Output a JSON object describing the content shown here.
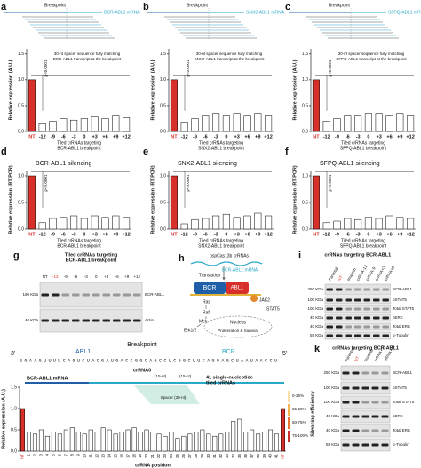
{
  "chart_data": [
    {
      "type": "bar",
      "panel": "a",
      "breakpoint_label": "Breakpoint",
      "mrna_label": "BCR-ABL1 mRNA",
      "note": [
        "30-nt spacer sequence fully matching",
        "BCR-ABL1 transcript at the breakpoint"
      ],
      "annotation": "p<0.0001",
      "ylabel": "Relative expression (A.U.)",
      "xlabel": [
        "Tiled crRNAs targeting",
        "BCR-ABL1 breakpoint"
      ],
      "categories": [
        "NT",
        "-12",
        "-9",
        "-6",
        "-3",
        "0",
        "+3",
        "+6",
        "+9",
        "+12"
      ],
      "values": [
        1.0,
        0.15,
        0.2,
        0.25,
        0.22,
        0.25,
        0.28,
        0.25,
        0.3,
        0.27
      ],
      "colors": [
        "#d7302a",
        "#ffffff",
        "#ffffff",
        "#ffffff",
        "#ffffff",
        "#ffffff",
        "#ffffff",
        "#ffffff",
        "#ffffff",
        "#ffffff"
      ],
      "ylim": [
        0,
        1.6
      ],
      "yticks": [
        {
          "value": 0,
          "label": "0.0"
        },
        0.5,
        {
          "value": 1,
          "label": "1.0"
        },
        1.5
      ]
    },
    {
      "type": "bar",
      "panel": "b",
      "breakpoint_label": "Breakpoint",
      "mrna_label": "SNX2-ABL1 mRNA",
      "note": [
        "30-nt spacer sequence fully matching",
        "SNX2-ABL1 transcript at the breakpoint"
      ],
      "annotation": "p<0.0001",
      "ylabel": "Relative expression (A.U.)",
      "xlabel": [
        "Tiled crRNAs targeting",
        "SNX2-ABL1 breakpoint"
      ],
      "categories": [
        "NT",
        "-12",
        "-9",
        "-6",
        "-3",
        "0",
        "+3",
        "+6",
        "+9",
        "+12"
      ],
      "values": [
        1.0,
        0.18,
        0.25,
        0.3,
        0.35,
        0.3,
        0.35,
        0.3,
        0.35,
        0.3
      ],
      "colors": [
        "#d7302a",
        "#ffffff",
        "#ffffff",
        "#ffffff",
        "#ffffff",
        "#ffffff",
        "#ffffff",
        "#ffffff",
        "#ffffff",
        "#ffffff"
      ],
      "ylim": [
        0,
        1.6
      ],
      "yticks": [
        {
          "value": 0,
          "label": "0.0"
        },
        0.5,
        {
          "value": 1,
          "label": "1.0"
        },
        1.5
      ]
    },
    {
      "type": "bar",
      "panel": "c",
      "breakpoint_label": "Breakpoint",
      "mrna_label": "SFPQ-ABL1 mRNA",
      "note": [
        "30-nt spacer sequence fully matching",
        "SFPQ-ABL1 transcript at the breakpoint"
      ],
      "annotation": "p<0.0001",
      "ylabel": "Relative expression (A.U.)",
      "xlabel": [
        "Tiled crRNAs targeting",
        "SFPQ-ABL1 breakpoint"
      ],
      "categories": [
        "NT",
        "-12",
        "-9",
        "-6",
        "-3",
        "0",
        "+3",
        "+6",
        "+9",
        "+12"
      ],
      "values": [
        1.0,
        0.2,
        0.25,
        0.3,
        0.3,
        0.35,
        0.35,
        0.3,
        0.35,
        0.3
      ],
      "colors": [
        "#d7302a",
        "#ffffff",
        "#ffffff",
        "#ffffff",
        "#ffffff",
        "#ffffff",
        "#ffffff",
        "#ffffff",
        "#ffffff",
        "#ffffff"
      ],
      "ylim": [
        0,
        1.6
      ],
      "yticks": [
        {
          "value": 0,
          "label": "0.0"
        },
        0.5,
        {
          "value": 1,
          "label": "1.0"
        },
        1.5
      ]
    },
    {
      "type": "bar",
      "panel": "d",
      "title": "BCR-ABL1 silencing",
      "annotation": "p<0.0001",
      "ylabel": "Relative expression (RT-PCR)",
      "xlabel": [
        "Tiled crRNAs targeting",
        "BCR-ABL1 breakpoint"
      ],
      "categories": [
        "NT",
        "-12",
        "-9",
        "-6",
        "-3",
        "0",
        "+3",
        "+6",
        "+9",
        "+12"
      ],
      "values": [
        1.0,
        0.12,
        0.2,
        0.22,
        0.25,
        0.2,
        0.25,
        0.22,
        0.25,
        0.22
      ],
      "colors": [
        "#d7302a",
        "#ffffff",
        "#ffffff",
        "#ffffff",
        "#ffffff",
        "#ffffff",
        "#ffffff",
        "#ffffff",
        "#ffffff",
        "#ffffff"
      ],
      "ylim": [
        0,
        1.1
      ],
      "yticks": [
        {
          "value": 0,
          "label": "0.0"
        },
        0.5,
        {
          "value": 1,
          "label": "1.0"
        }
      ]
    },
    {
      "type": "bar",
      "panel": "e",
      "title": "SNX2-ABL1 silencing",
      "annotation": "p<0.0001",
      "ylabel": "Relative expression (RT-PCR)",
      "xlabel": [
        "Tiled crRNAs targeting",
        "SNX2-ABL1 breakpoint"
      ],
      "categories": [
        "NT",
        "-12",
        "-9",
        "-6",
        "-3",
        "0",
        "+3",
        "+6",
        "+9",
        "+12"
      ],
      "values": [
        1.0,
        0.1,
        0.18,
        0.2,
        0.25,
        0.28,
        0.22,
        0.25,
        0.3,
        0.25
      ],
      "colors": [
        "#d7302a",
        "#ffffff",
        "#ffffff",
        "#ffffff",
        "#ffffff",
        "#ffffff",
        "#ffffff",
        "#ffffff",
        "#ffffff",
        "#ffffff"
      ],
      "ylim": [
        0,
        1.1
      ],
      "yticks": [
        {
          "value": 0,
          "label": "0.0"
        },
        0.5,
        {
          "value": 1,
          "label": "1.0"
        }
      ]
    },
    {
      "type": "bar",
      "panel": "f",
      "title": "SFPQ-ABL1 silencing",
      "annotation": "p<0.0001",
      "ylabel": "Relative expression (RT-PCR)",
      "xlabel": [
        "Tiled crRNAs targeting",
        "SFPQ-ABL1 breakpoint"
      ],
      "categories": [
        "NT",
        "-12",
        "-9",
        "-6",
        "-3",
        "0",
        "+3",
        "+6",
        "+9",
        "+12"
      ],
      "values": [
        1.0,
        0.12,
        0.15,
        0.2,
        0.18,
        0.22,
        0.2,
        0.25,
        0.22,
        0.2
      ],
      "colors": [
        "#d7302a",
        "#ffffff",
        "#ffffff",
        "#ffffff",
        "#ffffff",
        "#ffffff",
        "#ffffff",
        "#ffffff",
        "#ffffff",
        "#ffffff"
      ],
      "ylim": [
        0,
        1.1
      ],
      "yticks": [
        {
          "value": 0,
          "label": "0.0"
        },
        0.5,
        {
          "value": 1,
          "label": "1.0"
        }
      ]
    },
    {
      "type": "bar",
      "panel": "j",
      "ylabel": "Relative expression (A.U.)",
      "xlabel": [
        "crRNA position"
      ],
      "diagram": {
        "end3": "3'",
        "end5": "5'",
        "gene_left": "ABL1",
        "gene_right": "BCR",
        "breakpoint": "Breakpoint",
        "sequence": "GGAAGUUUUCAGUCUACGAUGACCGGCAGCCUCGGCUUCAGGAGCUAAUAACCU",
        "crrna": "crRNA0",
        "segment": "(15-nt)",
        "mrna": "BCR-ABL1 mRNA",
        "spacer": "Spacer (30-nt)",
        "tiled": [
          "41 single-nucleotide",
          "tiled crRNAs"
        ]
      },
      "right_title": "Silencing efficiency",
      "right_labels": [
        "0-25%",
        "25-50%",
        "50-75%",
        "75-100%"
      ],
      "categories": [
        "NT",
        "1",
        "2",
        "3",
        "4",
        "5",
        "6",
        "7",
        "8",
        "9",
        "10",
        "11",
        "12",
        "13",
        "14",
        "15",
        "16",
        "17",
        "18",
        "19",
        "20",
        "21",
        "22",
        "23",
        "24",
        "25",
        "26",
        "27",
        "28",
        "29",
        "30",
        "31",
        "32",
        "33",
        "34",
        "35",
        "36",
        "37",
        "38",
        "39",
        "40",
        "41",
        "NT"
      ],
      "values": [
        1.0,
        0.45,
        0.4,
        0.5,
        0.35,
        0.45,
        0.4,
        0.5,
        0.55,
        0.45,
        0.4,
        0.5,
        0.45,
        0.55,
        0.5,
        0.4,
        0.45,
        0.5,
        0.55,
        0.45,
        0.5,
        0.45,
        0.4,
        0.35,
        0.45,
        0.3,
        0.35,
        0.4,
        0.45,
        0.5,
        0.4,
        0.35,
        0.4,
        0.45,
        0.7,
        0.75,
        0.45,
        0.5,
        0.4,
        0.45,
        0.5,
        0.4,
        1.0
      ],
      "colors": [
        "#d7302a",
        "#ffffff",
        "#ffffff",
        "#ffffff",
        "#ffffff",
        "#ffffff",
        "#ffffff",
        "#ffffff",
        "#ffffff",
        "#ffffff",
        "#ffffff",
        "#ffffff",
        "#ffffff",
        "#ffffff",
        "#ffffff",
        "#ffffff",
        "#ffffff",
        "#ffffff",
        "#ffffff",
        "#ffffff",
        "#ffffff",
        "#ffffff",
        "#ffffff",
        "#ffffff",
        "#ffffff",
        "#ffffff",
        "#ffffff",
        "#ffffff",
        "#ffffff",
        "#ffffff",
        "#ffffff",
        "#ffffff",
        "#ffffff",
        "#ffffff",
        "#ffffff",
        "#ffffff",
        "#ffffff",
        "#ffffff",
        "#ffffff",
        "#ffffff",
        "#ffffff",
        "#ffffff",
        "#d7302a"
      ],
      "ylim": [
        0,
        1.5
      ],
      "yticks": [
        {
          "value": 0,
          "label": "0.0"
        },
        0.5,
        {
          "value": 1,
          "label": "1.0"
        },
        1.5
      ]
    }
  ],
  "panels": {
    "g": {
      "letter": "g",
      "title": [
        "Tiled crRNAs targeting",
        "BCR-ABL1 breakpoint"
      ],
      "lanes": [
        "NT",
        "-12",
        "-9",
        "-6",
        "-3",
        "0",
        "+3",
        "+6",
        "+9",
        "+12"
      ],
      "rows": [
        "BCR-ABL1",
        "Actin"
      ],
      "markers": [
        "190 KDa",
        "40 KDa"
      ]
    },
    "h": {
      "letter": "h",
      "crrnas": "pspCas13b crRNAs",
      "mrna": "BCR-ABL1 mRNA",
      "translation": "Translation",
      "bcr": "BCR",
      "abl1": "ABL1",
      "ras": "Ras",
      "jak2": "JAK2",
      "raf": "Raf",
      "stat5": "STAT5",
      "mek": "Mek",
      "erk": "Erk1/2",
      "nucleus": "Nucleus",
      "outcome": "Proliferation & Survival"
    },
    "i": {
      "letter": "i",
      "title": "crRNAs targeting BCR-ABL1",
      "lanes": [
        "Parental",
        "NT",
        "Imatinib",
        "crRNA-12",
        "crRNA-9",
        "crRNA+3",
        "crRNA+9"
      ],
      "rows": [
        "BCR-ABL1",
        "pSTAT5",
        "Total STAT5",
        "pERK",
        "Total ERK",
        "α-Tubulin"
      ],
      "markers": [
        "250 KDa",
        "100 KDa",
        "100 KDa",
        "40 KDa",
        "40 KDa",
        "55 KDa"
      ]
    },
    "k": {
      "letter": "k",
      "title": "crRNAs targeting BCR-ABL1",
      "lanes": [
        "Parental",
        "NT",
        "Imatinib",
        "crRNA+10",
        "crRNA+11"
      ],
      "rows": [
        "BCR-ABL1",
        "pSTAT5",
        "Total STAT5",
        "pERK",
        "Total ERK",
        "α-Tubulin"
      ],
      "markers": [
        "250 KDa",
        "100 KDa",
        "100 KDa",
        "40 KDa",
        "40 KDa",
        "55 KDa"
      ]
    }
  }
}
